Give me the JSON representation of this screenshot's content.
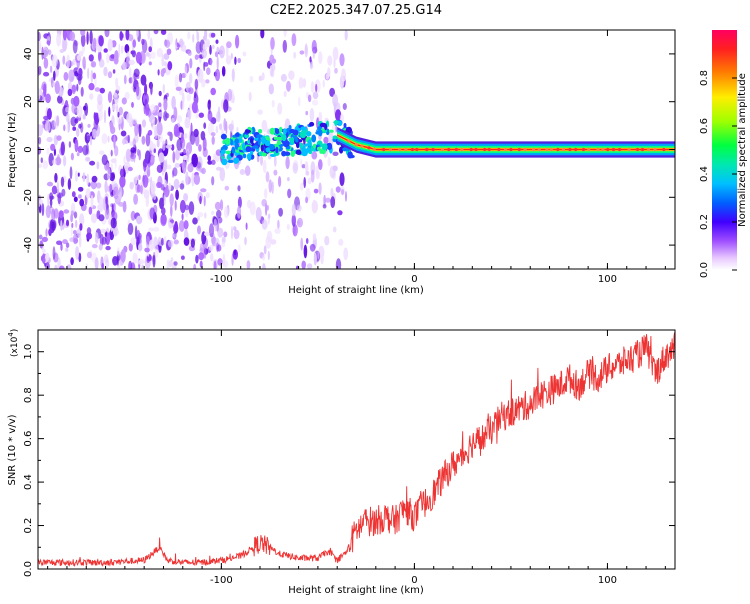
{
  "title": "C2E2.2025.347.07.25.G14",
  "chart_data": [
    {
      "type": "heatmap",
      "name": "spectrogram",
      "xlabel": "Height of straight line (km)",
      "ylabel": "Frequency (Hz)",
      "xlim": [
        -195,
        135
      ],
      "ylim": [
        -50,
        50
      ],
      "xticks": [
        -100,
        0,
        100
      ],
      "yticks": [
        -40,
        -20,
        0,
        20,
        40
      ],
      "colorbar": {
        "label": "Normalized spectral amplitude",
        "range": [
          0,
          1
        ],
        "ticks": [
          "0.0",
          "0.2",
          "0.4",
          "0.6",
          "0.8"
        ],
        "colors": [
          "#ffffff",
          "#e8c8ff",
          "#a050ff",
          "#6000e0",
          "#2020ff",
          "#00a0ff",
          "#00e0c0",
          "#00ff60",
          "#80ff00",
          "#ffff00",
          "#ff8000",
          "#ff2020",
          "#ff0060"
        ]
      },
      "signal_track": [
        {
          "x": -100,
          "y": 0
        },
        {
          "x": -80,
          "y": 3
        },
        {
          "x": -60,
          "y": 4
        },
        {
          "x": -40,
          "y": 6
        },
        {
          "x": -30,
          "y": 2
        },
        {
          "x": -20,
          "y": 0
        },
        {
          "x": 0,
          "y": 0
        },
        {
          "x": 135,
          "y": 0
        }
      ]
    },
    {
      "type": "line",
      "name": "snr",
      "title": "",
      "xlabel": "Height of straight line (km)",
      "ylabel": "SNR (10 * v/v)",
      "y_multiplier": "(x10",
      "y_exponent": "4",
      "y_multiplier_close": ")",
      "xlim": [
        -195,
        135
      ],
      "ylim": [
        0,
        1.1
      ],
      "xticks": [
        -100,
        0,
        100
      ],
      "yticks": [
        "0.0",
        "0.2",
        "0.4",
        "0.6",
        "0.8",
        "1.0"
      ],
      "ytick_values": [
        0,
        0.2,
        0.4,
        0.6,
        0.8,
        1.0
      ],
      "series_color": "#ee3333",
      "series": [
        {
          "name": "SNR",
          "x": [
            -195,
            -180,
            -160,
            -140,
            -132,
            -128,
            -120,
            -110,
            -100,
            -90,
            -80,
            -75,
            -70,
            -60,
            -50,
            -45,
            -40,
            -35,
            -30,
            -25,
            -20,
            -15,
            -10,
            -5,
            0,
            5,
            10,
            15,
            20,
            25,
            30,
            35,
            40,
            45,
            50,
            55,
            60,
            65,
            70,
            75,
            80,
            85,
            90,
            95,
            100,
            105,
            110,
            115,
            120,
            125,
            130,
            135
          ],
          "values": [
            0.03,
            0.03,
            0.03,
            0.04,
            0.1,
            0.04,
            0.03,
            0.03,
            0.04,
            0.06,
            0.12,
            0.1,
            0.07,
            0.05,
            0.05,
            0.08,
            0.04,
            0.08,
            0.18,
            0.22,
            0.22,
            0.24,
            0.22,
            0.28,
            0.24,
            0.3,
            0.35,
            0.42,
            0.48,
            0.52,
            0.58,
            0.6,
            0.64,
            0.7,
            0.72,
            0.74,
            0.76,
            0.8,
            0.82,
            0.84,
            0.88,
            0.84,
            0.9,
            0.88,
            0.92,
            0.94,
            0.96,
            0.98,
            1.02,
            0.9,
            0.98,
            1.02
          ]
        }
      ]
    }
  ]
}
